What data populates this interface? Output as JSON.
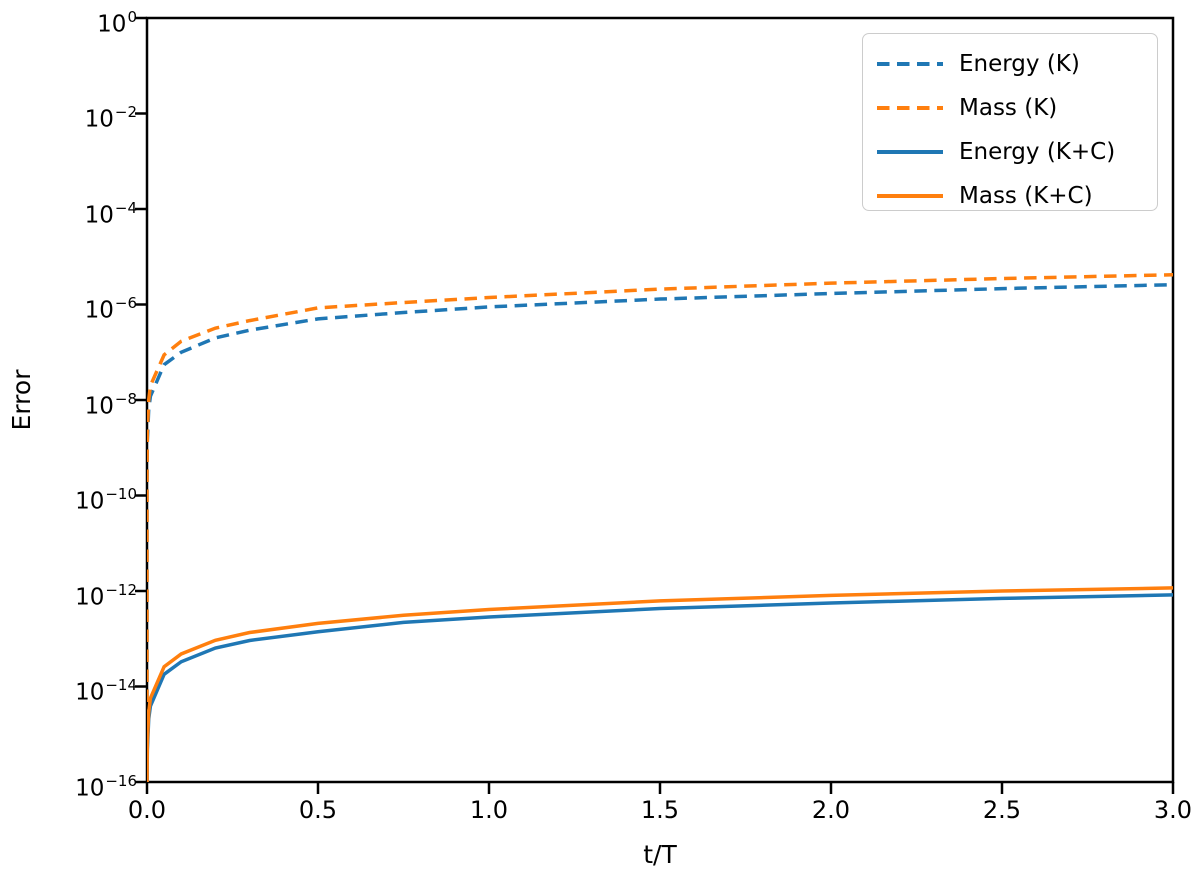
{
  "colors": {
    "blue": "#1f77b4",
    "orange": "#ff7f0e",
    "axis": "#000000",
    "legend_border": "#cccccc",
    "background": "#ffffff"
  },
  "axes": {
    "x": {
      "label": "t/T",
      "ticks": [
        "0.0",
        "0.5",
        "1.0",
        "1.5",
        "2.0",
        "2.5",
        "3.0"
      ]
    },
    "y": {
      "label": "Error",
      "tick_base": "10",
      "tick_exponents": [
        "0",
        "−2",
        "−4",
        "−6",
        "−8",
        "−10",
        "−12",
        "−14",
        "−16"
      ]
    }
  },
  "chart_data": {
    "type": "line",
    "title": "",
    "xlabel": "t/T",
    "ylabel": "Error",
    "x_range": [
      0,
      3
    ],
    "y_scale": "log",
    "y_range": [
      1e-16,
      1
    ],
    "x_tick_values": [
      0.0,
      0.5,
      1.0,
      1.5,
      2.0,
      2.5,
      3.0
    ],
    "y_tick_values": [
      1,
      0.01,
      0.0001,
      1e-06,
      1e-08,
      1e-10,
      1e-12,
      1e-14,
      1e-16
    ],
    "grid": false,
    "legend_position": "upper right",
    "x": [
      0,
      1e-05,
      0.0001,
      0.001,
      0.005,
      0.01,
      0.05,
      0.1,
      0.2,
      0.3,
      0.5,
      0.75,
      1.0,
      1.5,
      2.0,
      2.5,
      3.0
    ],
    "series": [
      {
        "name": "Energy (K)",
        "color": "#1f77b4",
        "style": "dashed",
        "values": [
          0,
          2e-11,
          1.7e-10,
          1.4e-09,
          6.5e-09,
          1.2e-08,
          5.5e-08,
          1e-07,
          2e-07,
          2.9e-07,
          5e-07,
          6.8e-07,
          8.9e-07,
          1.3e-06,
          1.7e-06,
          2.15e-06,
          2.6e-06
        ]
      },
      {
        "name": "Mass (K)",
        "color": "#ff7f0e",
        "style": "dashed",
        "values": [
          0,
          3.2e-11,
          2.7e-10,
          2.3e-09,
          1e-08,
          2e-08,
          8.8e-08,
          1.7e-07,
          3.2e-07,
          4.6e-07,
          8.5e-07,
          1.1e-06,
          1.4e-06,
          2.1e-06,
          2.8e-06,
          3.5e-06,
          4.2e-06
        ]
      },
      {
        "name": "Energy (K+C)",
        "color": "#1f77b4",
        "style": "solid",
        "values": [
          0,
          6e-18,
          5.4e-17,
          4.6e-16,
          2.1e-15,
          3.9e-15,
          1.8e-14,
          3.3e-14,
          6.4e-14,
          9.2e-14,
          1.4e-13,
          2.2e-13,
          2.85e-13,
          4.3e-13,
          5.6e-13,
          7e-13,
          8.3e-13
        ]
      },
      {
        "name": "Mass (K+C)",
        "color": "#ff7f0e",
        "style": "solid",
        "values": [
          0,
          9e-18,
          7.8e-17,
          6.7e-16,
          2.9e-15,
          5.7e-15,
          2.6e-14,
          4.8e-14,
          9.3e-14,
          1.35e-13,
          2.1e-13,
          3.1e-13,
          4.1e-13,
          6.2e-13,
          8.1e-13,
          1e-12,
          1.16e-12
        ]
      }
    ]
  }
}
